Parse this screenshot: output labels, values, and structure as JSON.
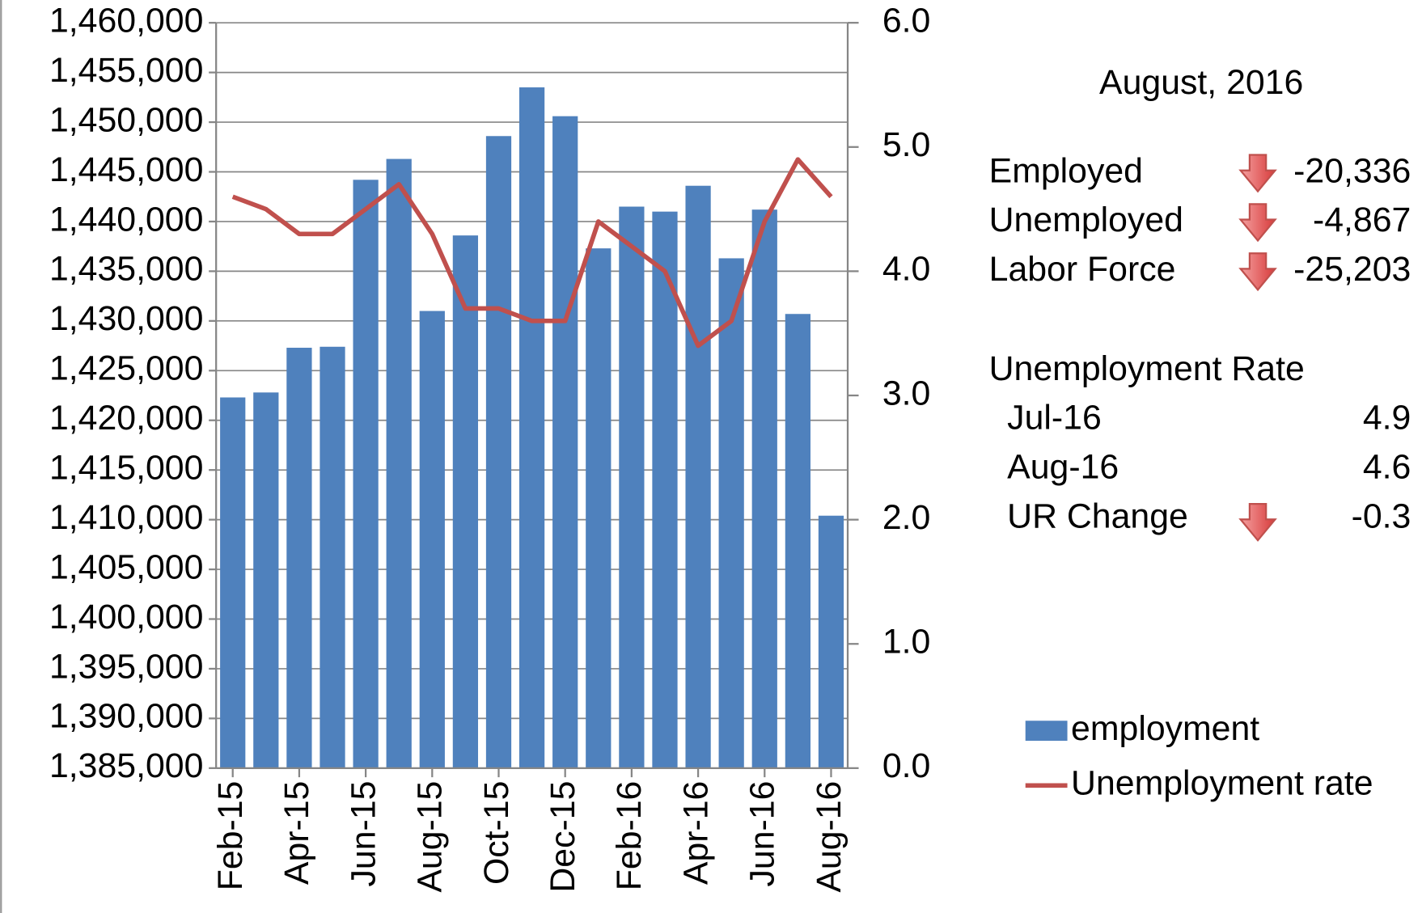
{
  "chart_data": {
    "type": "bar-line",
    "categories": [
      "Feb-15",
      null,
      "Apr-15",
      null,
      "Jun-15",
      null,
      "Aug-15",
      null,
      "Oct-15",
      null,
      "Dec-15",
      null,
      "Feb-16",
      null,
      "Apr-16",
      null,
      "Jun-16",
      null,
      "Aug-16"
    ],
    "series": [
      {
        "name": "employment",
        "type": "bar",
        "color": "#4f81bd",
        "values": [
          1422300,
          1422800,
          1427300,
          1427400,
          1444200,
          1446300,
          1431000,
          1438600,
          1448600,
          1453500,
          1450600,
          1437300,
          1441500,
          1441000,
          1443600,
          1436300,
          1441200,
          1430700,
          1410400
        ]
      },
      {
        "name": "Unemployment rate",
        "type": "line",
        "axis": "y2",
        "color": "#c0504d",
        "values": [
          4.6,
          4.5,
          4.3,
          4.3,
          4.5,
          4.7,
          4.3,
          3.7,
          3.7,
          3.6,
          3.6,
          4.4,
          4.2,
          4.0,
          3.4,
          3.6,
          4.4,
          4.9,
          4.6
        ]
      }
    ],
    "ylim": [
      1385000,
      1460000
    ],
    "yticks": [
      {
        "value": 1385000,
        "label": "1,385,000"
      },
      {
        "value": 1390000,
        "label": "1,390,000"
      },
      {
        "value": 1395000,
        "label": "1,395,000"
      },
      {
        "value": 1400000,
        "label": "1,400,000"
      },
      {
        "value": 1405000,
        "label": "1,405,000"
      },
      {
        "value": 1410000,
        "label": "1,410,000"
      },
      {
        "value": 1415000,
        "label": "1,415,000"
      },
      {
        "value": 1420000,
        "label": "1,420,000"
      },
      {
        "value": 1425000,
        "label": "1,425,000"
      },
      {
        "value": 1430000,
        "label": "1,430,000"
      },
      {
        "value": 1435000,
        "label": "1,435,000"
      },
      {
        "value": 1440000,
        "label": "1,440,000"
      },
      {
        "value": 1445000,
        "label": "1,445,000"
      },
      {
        "value": 1450000,
        "label": "1,450,000"
      },
      {
        "value": 1455000,
        "label": "1,455,000"
      },
      {
        "value": 1460000,
        "label": "1,460,000"
      }
    ],
    "y2lim": [
      0,
      6
    ],
    "y2ticks": [
      {
        "value": 0,
        "label": "0.0"
      },
      {
        "value": 1,
        "label": "1.0"
      },
      {
        "value": 2,
        "label": "2.0"
      },
      {
        "value": 3,
        "label": "3.0"
      },
      {
        "value": 4,
        "label": "4.0"
      },
      {
        "value": 5,
        "label": "5.0"
      },
      {
        "value": 6,
        "label": "6.0"
      }
    ],
    "grid": true,
    "legend": "right"
  },
  "panel": {
    "title": "August, 2016",
    "rows": [
      {
        "label": "Employed",
        "value": "-20,336"
      },
      {
        "label": "Unemployed",
        "value": "-4,867"
      },
      {
        "label": "Labor Force",
        "value": "-25,203"
      }
    ],
    "rate_title": "Unemployment Rate",
    "rates": [
      {
        "label": "Jul-16",
        "value": "4.9"
      },
      {
        "label": "Aug-16",
        "value": "4.6"
      },
      {
        "label": "UR Change",
        "value": "-0.3"
      }
    ]
  }
}
